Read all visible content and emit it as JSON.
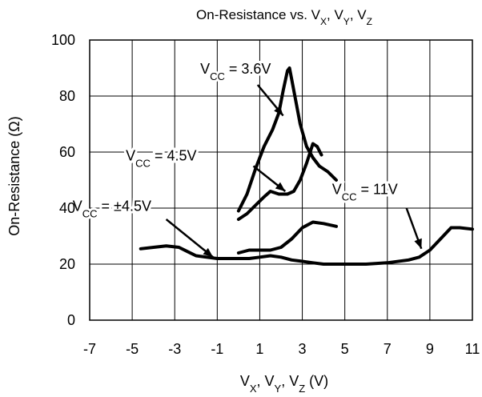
{
  "chart_data": {
    "type": "line",
    "title": "On-Resistance vs. V_X, V_Y, V_Z",
    "title_parts": [
      {
        "t": "On-Resistance vs. V",
        "s": false
      },
      {
        "t": "X",
        "s": true
      },
      {
        "t": ", V",
        "s": false
      },
      {
        "t": "Y",
        "s": true
      },
      {
        "t": ", V",
        "s": false
      },
      {
        "t": "Z",
        "s": true
      }
    ],
    "xlabel": "V_X, V_Y, V_Z (V)",
    "xlabel_parts": [
      {
        "t": "V",
        "s": false
      },
      {
        "t": "X",
        "s": true
      },
      {
        "t": ", V",
        "s": false
      },
      {
        "t": "Y",
        "s": true
      },
      {
        "t": ", V",
        "s": false
      },
      {
        "t": "Z",
        "s": true
      },
      {
        "t": " (V)",
        "s": false
      }
    ],
    "ylabel": "On-Resistance (Ω)",
    "xlim": [
      -7,
      11
    ],
    "ylim": [
      0,
      100
    ],
    "x_ticks": [
      -7,
      -5,
      -3,
      -1,
      1,
      3,
      5,
      7,
      9,
      11
    ],
    "y_ticks": [
      0,
      20,
      40,
      60,
      80,
      100
    ],
    "grid": true,
    "series": [
      {
        "name": "V_CC = 3.6V",
        "label_parts": [
          {
            "t": "V",
            "s": false
          },
          {
            "t": "CC",
            "s": true
          },
          {
            "t": " = 3.6V",
            "s": false
          }
        ],
        "x": [
          0,
          0.4,
          0.8,
          1.2,
          1.6,
          1.9,
          2.1,
          2.3,
          2.4,
          2.5,
          2.7,
          2.9,
          3.2,
          3.5,
          3.8,
          4.2,
          4.6
        ],
        "y": [
          39,
          45,
          54,
          62,
          68,
          74,
          82,
          89,
          90,
          86,
          78,
          70,
          62,
          58,
          55,
          53,
          50
        ]
      },
      {
        "name": "V_CC = 4.5V",
        "label_parts": [
          {
            "t": "V",
            "s": false
          },
          {
            "t": "CC",
            "s": true
          },
          {
            "t": " = 4.5V",
            "s": false
          }
        ],
        "x": [
          0,
          0.4,
          0.8,
          1.2,
          1.5,
          1.9,
          2.3,
          2.6,
          2.9,
          3.2,
          3.5,
          3.7,
          3.9
        ],
        "y": [
          36,
          38,
          41,
          44,
          46,
          45,
          45,
          46,
          50,
          56,
          63,
          62,
          59
        ]
      },
      {
        "name": "V_CC = ±4.5V",
        "label_parts": [
          {
            "t": "V",
            "s": false
          },
          {
            "t": "CC",
            "s": true
          },
          {
            "t": " = ±4.5V",
            "s": false
          }
        ],
        "x": [
          0,
          0.5,
          1,
          1.5,
          2,
          2.5,
          3,
          3.5,
          4,
          4.6
        ],
        "y": [
          24,
          25,
          25,
          25,
          26,
          29,
          33,
          35,
          34.5,
          33.5
        ]
      },
      {
        "name": "V_CC = 11V",
        "label_parts": [
          {
            "t": "V",
            "s": false
          },
          {
            "t": "CC",
            "s": true
          },
          {
            "t": " = 11V",
            "s": false
          }
        ],
        "x": [
          -4.6,
          -4,
          -3.4,
          -2.8,
          -2.4,
          -2,
          -1.5,
          -1,
          -0.5,
          0,
          0.5,
          1,
          1.5,
          2,
          2.5,
          3,
          3.5,
          4,
          5,
          6,
          7,
          8,
          8.5,
          9,
          9.5,
          10,
          10.4,
          11
        ],
        "y": [
          25.5,
          26,
          26.5,
          26,
          24.5,
          23,
          22.5,
          22,
          22,
          22,
          22,
          22.5,
          23,
          22.5,
          21.5,
          21,
          20.5,
          20,
          20,
          20,
          20.5,
          21.5,
          22.5,
          25,
          29,
          33,
          33,
          32.5
        ]
      }
    ],
    "annotations": [
      {
        "series": 0,
        "label_at": [
          -1.8,
          88
        ],
        "arrow_from": [
          0.9,
          84
        ],
        "arrow_to": [
          2.1,
          73
        ]
      },
      {
        "series": 1,
        "label_at": [
          -5.3,
          57
        ],
        "arrow_from": [
          0.7,
          55
        ],
        "arrow_to": [
          2.2,
          46
        ]
      },
      {
        "series": 2,
        "label_at": [
          -7.8,
          39
        ],
        "arrow_from": [
          -3.4,
          36
        ],
        "arrow_to": [
          -1.2,
          22.5
        ]
      },
      {
        "series": 3,
        "label_at": [
          4.4,
          45
        ],
        "arrow_from": [
          7.9,
          40
        ],
        "arrow_to": [
          8.6,
          25.5
        ]
      }
    ]
  }
}
